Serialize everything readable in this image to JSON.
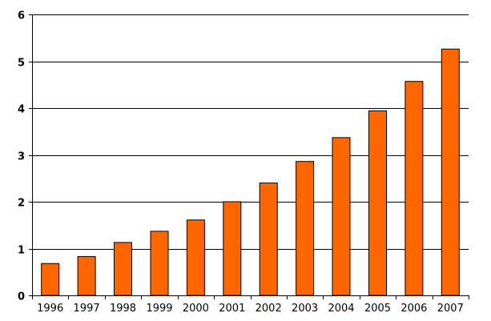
{
  "chart_data": {
    "type": "bar",
    "title": "",
    "xlabel": "",
    "ylabel": "",
    "categories": [
      "1996",
      "1997",
      "1998",
      "1999",
      "2000",
      "2001",
      "2002",
      "2003",
      "2004",
      "2005",
      "2006",
      "2007"
    ],
    "values": [
      0.68,
      0.83,
      1.13,
      1.37,
      1.61,
      2.0,
      2.4,
      2.86,
      3.37,
      3.94,
      4.57,
      5.26
    ],
    "ylim": [
      0,
      6
    ],
    "yticks": [
      "0",
      "1",
      "2",
      "3",
      "4",
      "5",
      "6"
    ],
    "grid": "horizontal",
    "legend": "none",
    "bar_color": "#FF6600",
    "bar_edge_color": "#000000"
  }
}
